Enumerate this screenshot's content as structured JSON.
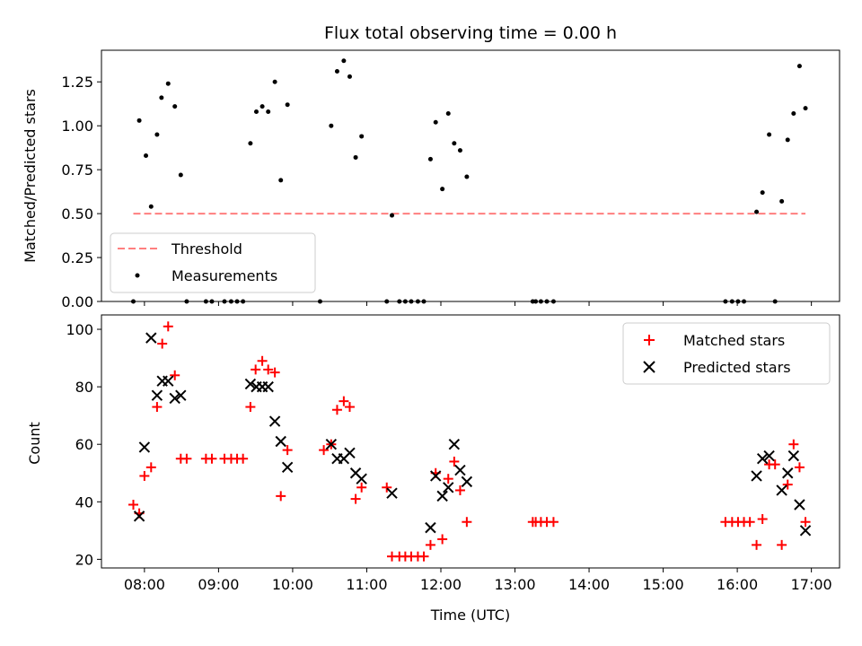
{
  "chart_data": [
    {
      "type": "scatter",
      "title": "Flux total observing time = 0.00 h",
      "xlabel": "",
      "ylabel": "Matched/Predicted stars",
      "xunit": "hours UTC",
      "xlim": [
        7.42,
        17.38
      ],
      "ylim": [
        0,
        1.43
      ],
      "xticks": [
        8,
        9,
        10,
        11,
        12,
        13,
        14,
        15,
        16,
        17
      ],
      "xtick_labels": [
        "",
        "",
        "",
        "",
        "",
        "",
        "",
        "",
        "",
        ""
      ],
      "yticks": [
        0.0,
        0.25,
        0.5,
        0.75,
        1.0,
        1.25
      ],
      "ytick_labels": [
        "0.00",
        "0.25",
        "0.50",
        "0.75",
        "1.00",
        "1.25"
      ],
      "legend": {
        "position": "lower-left",
        "entries": [
          "Threshold",
          "Measurements"
        ]
      },
      "threshold": {
        "name": "Threshold",
        "value": 0.5,
        "x_range": [
          7.85,
          16.92
        ],
        "color": "#ff7f7f",
        "style": "dashed"
      },
      "series": [
        {
          "name": "Measurements",
          "marker": "dot",
          "color": "#000000",
          "points": [
            [
              7.85,
              0.0
            ],
            [
              7.93,
              1.03
            ],
            [
              8.02,
              0.83
            ],
            [
              8.09,
              0.54
            ],
            [
              8.17,
              0.95
            ],
            [
              8.23,
              1.16
            ],
            [
              8.32,
              1.24
            ],
            [
              8.41,
              1.11
            ],
            [
              8.49,
              0.72
            ],
            [
              8.57,
              0.0
            ],
            [
              8.83,
              0.0
            ],
            [
              8.91,
              0.0
            ],
            [
              9.08,
              0.0
            ],
            [
              9.17,
              0.0
            ],
            [
              9.25,
              0.0
            ],
            [
              9.33,
              0.0
            ],
            [
              9.43,
              0.9
            ],
            [
              9.51,
              1.08
            ],
            [
              9.59,
              1.11
            ],
            [
              9.67,
              1.08
            ],
            [
              9.76,
              1.25
            ],
            [
              9.84,
              0.69
            ],
            [
              9.93,
              1.12
            ],
            [
              10.37,
              0.0
            ],
            [
              10.52,
              1.0
            ],
            [
              10.6,
              1.31
            ],
            [
              10.69,
              1.37
            ],
            [
              10.77,
              1.28
            ],
            [
              10.85,
              0.82
            ],
            [
              10.93,
              0.94
            ],
            [
              11.27,
              0.0
            ],
            [
              11.34,
              0.49
            ],
            [
              11.44,
              0.0
            ],
            [
              11.52,
              0.0
            ],
            [
              11.6,
              0.0
            ],
            [
              11.69,
              0.0
            ],
            [
              11.77,
              0.0
            ],
            [
              11.86,
              0.81
            ],
            [
              11.93,
              1.02
            ],
            [
              12.02,
              0.64
            ],
            [
              12.1,
              1.07
            ],
            [
              12.18,
              0.9
            ],
            [
              12.26,
              0.86
            ],
            [
              12.35,
              0.71
            ],
            [
              13.24,
              0.0
            ],
            [
              13.28,
              0.0
            ],
            [
              13.35,
              0.0
            ],
            [
              13.43,
              0.0
            ],
            [
              13.52,
              0.0
            ],
            [
              15.84,
              0.0
            ],
            [
              15.93,
              0.0
            ],
            [
              16.01,
              0.0
            ],
            [
              16.09,
              0.0
            ],
            [
              16.26,
              0.51
            ],
            [
              16.34,
              0.62
            ],
            [
              16.43,
              0.95
            ],
            [
              16.51,
              0.0
            ],
            [
              16.6,
              0.57
            ],
            [
              16.68,
              0.92
            ],
            [
              16.76,
              1.07
            ],
            [
              16.84,
              1.34
            ],
            [
              16.92,
              1.1
            ]
          ]
        }
      ]
    },
    {
      "type": "scatter",
      "title": "",
      "xlabel": "Time (UTC)",
      "ylabel": "Count",
      "xunit": "hours UTC",
      "xlim": [
        7.42,
        17.38
      ],
      "ylim": [
        17,
        105
      ],
      "xticks": [
        8,
        9,
        10,
        11,
        12,
        13,
        14,
        15,
        16,
        17
      ],
      "xtick_labels": [
        "08:00",
        "09:00",
        "10:00",
        "11:00",
        "12:00",
        "13:00",
        "14:00",
        "15:00",
        "16:00",
        "17:00"
      ],
      "yticks": [
        20,
        40,
        60,
        80,
        100
      ],
      "ytick_labels": [
        "20",
        "40",
        "60",
        "80",
        "100"
      ],
      "legend": {
        "position": "top-right",
        "entries": [
          "Matched stars",
          "Predicted stars"
        ]
      },
      "series": [
        {
          "name": "Matched stars",
          "marker": "plus",
          "color": "#ff0000",
          "points": [
            [
              7.85,
              39
            ],
            [
              7.93,
              36
            ],
            [
              8.0,
              49
            ],
            [
              8.09,
              52
            ],
            [
              8.17,
              73
            ],
            [
              8.24,
              95
            ],
            [
              8.32,
              101
            ],
            [
              8.41,
              84
            ],
            [
              8.49,
              55
            ],
            [
              8.57,
              55
            ],
            [
              8.83,
              55
            ],
            [
              8.91,
              55
            ],
            [
              9.08,
              55
            ],
            [
              9.17,
              55
            ],
            [
              9.25,
              55
            ],
            [
              9.33,
              55
            ],
            [
              9.43,
              73
            ],
            [
              9.5,
              86
            ],
            [
              9.59,
              89
            ],
            [
              9.67,
              86
            ],
            [
              9.76,
              85
            ],
            [
              9.84,
              42
            ],
            [
              9.93,
              58
            ],
            [
              10.42,
              58
            ],
            [
              10.52,
              60
            ],
            [
              10.6,
              72
            ],
            [
              10.69,
              75
            ],
            [
              10.77,
              73
            ],
            [
              10.85,
              41
            ],
            [
              10.93,
              45
            ],
            [
              11.27,
              45
            ],
            [
              11.34,
              21
            ],
            [
              11.44,
              21
            ],
            [
              11.52,
              21
            ],
            [
              11.6,
              21
            ],
            [
              11.69,
              21
            ],
            [
              11.77,
              21
            ],
            [
              11.86,
              25
            ],
            [
              11.93,
              50
            ],
            [
              12.02,
              27
            ],
            [
              12.1,
              48
            ],
            [
              12.18,
              54
            ],
            [
              12.26,
              44
            ],
            [
              12.35,
              33
            ],
            [
              13.24,
              33
            ],
            [
              13.28,
              33
            ],
            [
              13.35,
              33
            ],
            [
              13.43,
              33
            ],
            [
              13.52,
              33
            ],
            [
              15.84,
              33
            ],
            [
              15.93,
              33
            ],
            [
              16.01,
              33
            ],
            [
              16.09,
              33
            ],
            [
              16.17,
              33
            ],
            [
              16.26,
              25
            ],
            [
              16.34,
              34
            ],
            [
              16.43,
              53
            ],
            [
              16.51,
              53
            ],
            [
              16.6,
              25
            ],
            [
              16.68,
              46
            ],
            [
              16.76,
              60
            ],
            [
              16.84,
              52
            ],
            [
              16.92,
              33
            ]
          ]
        },
        {
          "name": "Predicted stars",
          "marker": "x",
          "color": "#000000",
          "points": [
            [
              7.93,
              35
            ],
            [
              8.0,
              59
            ],
            [
              8.09,
              97
            ],
            [
              8.17,
              77
            ],
            [
              8.24,
              82
            ],
            [
              8.32,
              82
            ],
            [
              8.41,
              76
            ],
            [
              8.49,
              77
            ],
            [
              9.43,
              81
            ],
            [
              9.51,
              80
            ],
            [
              9.59,
              80
            ],
            [
              9.67,
              80
            ],
            [
              9.76,
              68
            ],
            [
              9.84,
              61
            ],
            [
              9.93,
              52
            ],
            [
              10.52,
              60
            ],
            [
              10.6,
              55
            ],
            [
              10.69,
              55
            ],
            [
              10.77,
              57
            ],
            [
              10.85,
              50
            ],
            [
              10.93,
              48
            ],
            [
              11.34,
              43
            ],
            [
              11.86,
              31
            ],
            [
              11.93,
              49
            ],
            [
              12.02,
              42
            ],
            [
              12.1,
              45
            ],
            [
              12.18,
              60
            ],
            [
              12.26,
              51
            ],
            [
              12.35,
              47
            ],
            [
              16.26,
              49
            ],
            [
              16.34,
              55
            ],
            [
              16.43,
              56
            ],
            [
              16.6,
              44
            ],
            [
              16.68,
              50
            ],
            [
              16.76,
              56
            ],
            [
              16.84,
              39
            ],
            [
              16.92,
              30
            ]
          ]
        }
      ]
    }
  ]
}
